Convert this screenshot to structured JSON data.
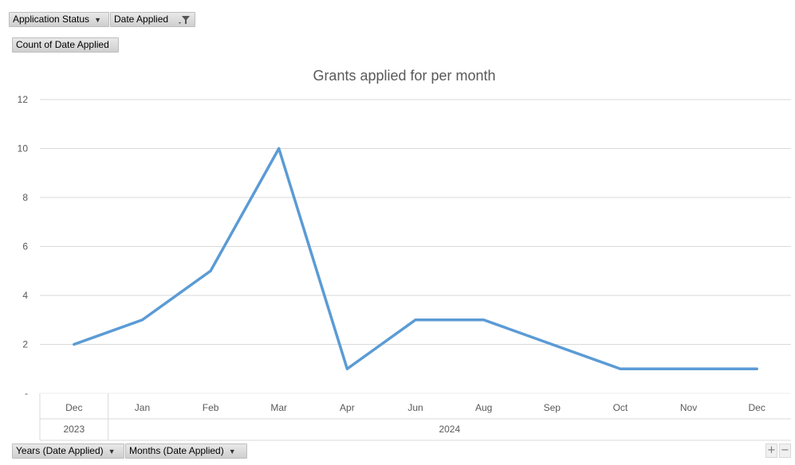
{
  "filters": {
    "application_status_label": "Application Status",
    "date_applied_label": "Date Applied",
    "values_label": "Count of Date Applied"
  },
  "axis_buttons": {
    "years_label": "Years (Date Applied)",
    "months_label": "Months (Date Applied)"
  },
  "zoom": {
    "plus": "+",
    "minus": "−"
  },
  "chart_data": {
    "type": "line",
    "title": "Grants applied for per month",
    "categories": [
      "Dec",
      "Jan",
      "Feb",
      "Mar",
      "Apr",
      "Jun",
      "Aug",
      "Sep",
      "Oct",
      "Nov",
      "Dec"
    ],
    "year_groups": [
      {
        "label": "2023",
        "count": 1
      },
      {
        "label": "2024",
        "count": 10
      }
    ],
    "series": [
      {
        "values": [
          2,
          3,
          5,
          10,
          1,
          3,
          3,
          2,
          1,
          1,
          1
        ]
      }
    ],
    "ylim": [
      0,
      12
    ],
    "yticks": [
      {
        "value": 0,
        "label": "-"
      },
      {
        "value": 2,
        "label": "2"
      },
      {
        "value": 4,
        "label": "4"
      },
      {
        "value": 6,
        "label": "6"
      },
      {
        "value": 8,
        "label": "8"
      },
      {
        "value": 10,
        "label": "10"
      },
      {
        "value": 12,
        "label": "12"
      }
    ],
    "grid": true,
    "line_color": "#5b9bd5",
    "grid_color": "#d9d9d9"
  }
}
